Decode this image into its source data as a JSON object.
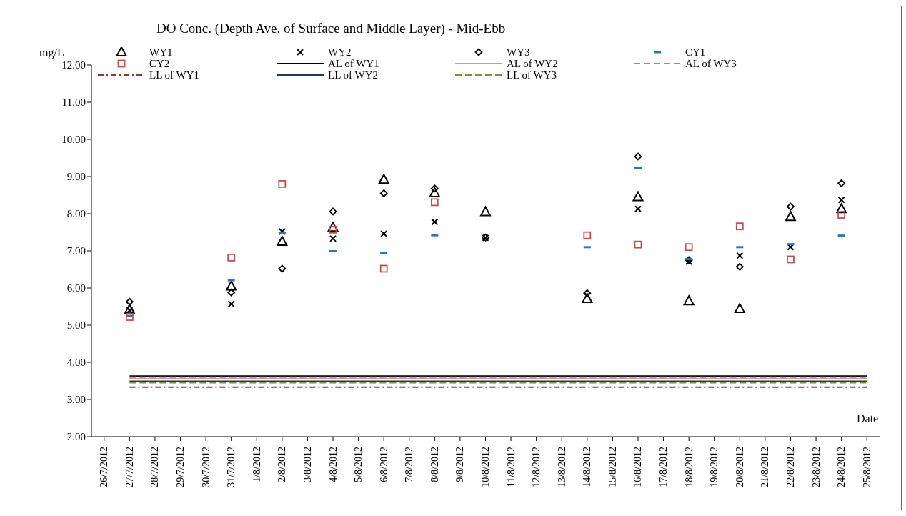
{
  "chart_data": {
    "type": "scatter",
    "title": "DO Conc. (Depth Ave. of Surface and Middle Layer) - Mid-Ebb",
    "xlabel": "Date",
    "ylabel": "mg/L",
    "categories": [
      "26/7/2012",
      "27/7/2012",
      "28/7/2012",
      "29/7/2012",
      "30/7/2012",
      "31/7/2012",
      "1/8/2012",
      "2/8/2012",
      "3/8/2012",
      "4/8/2012",
      "5/8/2012",
      "6/8/2012",
      "7/8/2012",
      "8/8/2012",
      "9/8/2012",
      "10/8/2012",
      "11/8/2012",
      "12/8/2012",
      "13/8/2012",
      "14/8/2012",
      "15/8/2012",
      "16/8/2012",
      "17/8/2012",
      "18/8/2012",
      "19/8/2012",
      "20/8/2012",
      "21/8/2012",
      "22/8/2012",
      "23/8/2012",
      "24/8/2012",
      "25/8/2012"
    ],
    "ylim": [
      2,
      12
    ],
    "yticks": [
      {
        "value": 2,
        "label": "2.00"
      },
      {
        "value": 3,
        "label": "3.00"
      },
      {
        "value": 4,
        "label": "4.00"
      },
      {
        "value": 5,
        "label": "5.00"
      },
      {
        "value": 6,
        "label": "6.00"
      },
      {
        "value": 7,
        "label": "7.00"
      },
      {
        "value": 8,
        "label": "8.00"
      },
      {
        "value": 9,
        "label": "9.00"
      },
      {
        "value": 10,
        "label": "10.00"
      },
      {
        "value": 11,
        "label": "11.00"
      },
      {
        "value": 12,
        "label": "12.00"
      }
    ],
    "grid": false,
    "legend": "top",
    "series": [
      {
        "name": "WY1",
        "marker": "triangle",
        "color": "#000000",
        "values": [
          null,
          5.42,
          null,
          null,
          null,
          6.05,
          null,
          7.25,
          null,
          7.63,
          null,
          8.92,
          null,
          8.56,
          null,
          8.05,
          null,
          null,
          null,
          5.71,
          null,
          8.45,
          null,
          5.65,
          null,
          5.44,
          null,
          7.92,
          null,
          8.13,
          null
        ]
      },
      {
        "name": "WY2",
        "marker": "cross",
        "color": "#000000",
        "values": [
          null,
          5.4,
          null,
          null,
          null,
          5.57,
          null,
          7.52,
          null,
          7.33,
          null,
          7.46,
          null,
          7.78,
          null,
          7.35,
          null,
          null,
          null,
          5.8,
          null,
          8.13,
          null,
          6.71,
          null,
          6.87,
          null,
          7.1,
          null,
          8.37,
          null
        ]
      },
      {
        "name": "WY3",
        "marker": "diamond",
        "color": "#000000",
        "values": [
          null,
          5.63,
          null,
          null,
          null,
          5.88,
          null,
          6.52,
          null,
          8.06,
          null,
          8.55,
          null,
          8.68,
          null,
          7.36,
          null,
          null,
          null,
          5.86,
          null,
          9.54,
          null,
          6.75,
          null,
          6.57,
          null,
          8.19,
          null,
          8.82,
          null
        ]
      },
      {
        "name": "CY1",
        "color": "#2e75b6",
        "values": [
          null,
          5.25,
          null,
          null,
          null,
          6.21,
          null,
          7.48,
          null,
          6.99,
          null,
          6.94,
          null,
          7.42,
          null,
          null,
          null,
          null,
          null,
          7.1,
          null,
          9.24,
          null,
          6.78,
          null,
          7.1,
          null,
          7.18,
          null,
          7.41,
          null
        ]
      },
      {
        "name": "CY2",
        "marker": "square",
        "color": "#c0504d",
        "values": [
          null,
          5.22,
          null,
          null,
          null,
          6.82,
          null,
          8.8,
          null,
          7.57,
          null,
          6.52,
          null,
          8.31,
          null,
          null,
          null,
          null,
          null,
          7.42,
          null,
          7.17,
          null,
          7.1,
          null,
          7.66,
          null,
          6.77,
          null,
          7.97,
          null
        ]
      },
      {
        "name": "AL of WY1",
        "type": "line",
        "line_style": "solid",
        "color": "#000000",
        "values": [
          null,
          3.63,
          3.63,
          3.63,
          3.63,
          3.63,
          3.63,
          3.63,
          3.63,
          3.63,
          3.63,
          3.63,
          3.63,
          3.63,
          3.63,
          3.63,
          3.63,
          3.63,
          3.63,
          3.63,
          3.63,
          3.63,
          3.63,
          3.63,
          3.63,
          3.63,
          3.63,
          3.63,
          3.63,
          3.63,
          3.63
        ]
      },
      {
        "name": "AL of WY2",
        "type": "line",
        "line_style": "solid",
        "color": "#e6928c",
        "values": [
          null,
          3.56,
          3.56,
          3.56,
          3.56,
          3.56,
          3.56,
          3.56,
          3.56,
          3.56,
          3.56,
          3.56,
          3.56,
          3.56,
          3.56,
          3.56,
          3.56,
          3.56,
          3.56,
          3.56,
          3.56,
          3.56,
          3.56,
          3.56,
          3.56,
          3.56,
          3.56,
          3.56,
          3.56,
          3.56,
          3.56
        ]
      },
      {
        "name": "AL of WY3",
        "type": "line",
        "line_style": "dashed",
        "color": "#4bacc6",
        "values": [
          null,
          3.6,
          3.6,
          3.6,
          3.6,
          3.6,
          3.6,
          3.6,
          3.6,
          3.6,
          3.6,
          3.6,
          3.6,
          3.6,
          3.6,
          3.6,
          3.6,
          3.6,
          3.6,
          3.6,
          3.6,
          3.6,
          3.6,
          3.6,
          3.6,
          3.6,
          3.6,
          3.6,
          3.6,
          3.6,
          3.6
        ]
      },
      {
        "name": "LL of WY1",
        "type": "line",
        "line_style": "dashdot",
        "color": "#943634",
        "values": [
          null,
          3.33,
          3.33,
          3.33,
          3.33,
          3.33,
          3.33,
          3.33,
          3.33,
          3.33,
          3.33,
          3.33,
          3.33,
          3.33,
          3.33,
          3.33,
          3.33,
          3.33,
          3.33,
          3.33,
          3.33,
          3.33,
          3.33,
          3.33,
          3.33,
          3.33,
          3.33,
          3.33,
          3.33,
          3.33,
          3.33
        ]
      },
      {
        "name": "LL of WY2",
        "type": "line",
        "line_style": "solid",
        "color": "#1f3864",
        "values": [
          null,
          3.49,
          3.49,
          3.49,
          3.49,
          3.49,
          3.49,
          3.49,
          3.49,
          3.49,
          3.49,
          3.49,
          3.49,
          3.49,
          3.49,
          3.49,
          3.49,
          3.49,
          3.49,
          3.49,
          3.49,
          3.49,
          3.49,
          3.49,
          3.49,
          3.49,
          3.49,
          3.49,
          3.49,
          3.49,
          3.49
        ]
      },
      {
        "name": "LL of WY3",
        "type": "line",
        "line_style": "dashed",
        "color": "#77933c",
        "values": [
          null,
          3.45,
          3.45,
          3.45,
          3.45,
          3.45,
          3.45,
          3.45,
          3.45,
          3.45,
          3.45,
          3.45,
          3.45,
          3.45,
          3.45,
          3.45,
          3.45,
          3.45,
          3.45,
          3.45,
          3.45,
          3.45,
          3.45,
          3.45,
          3.45,
          3.45,
          3.45,
          3.45,
          3.45,
          3.45,
          3.45
        ]
      }
    ]
  }
}
